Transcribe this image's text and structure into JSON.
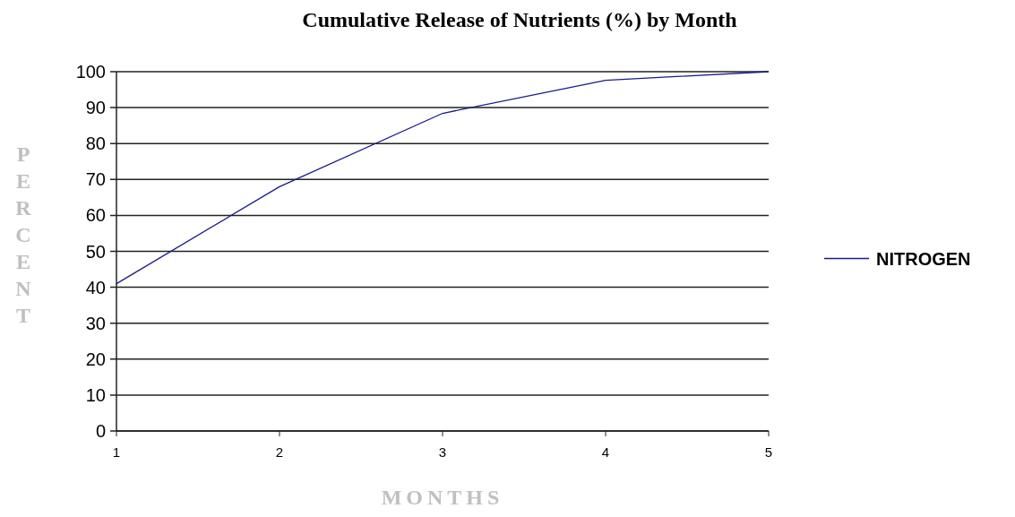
{
  "chart_data": {
    "type": "line",
    "title": "Cumulative Release of Nutrients (%) by Month",
    "xlabel": "MONTHS",
    "ylabel": "PERCENT",
    "x": [
      1,
      2,
      3,
      4,
      5
    ],
    "xlim": [
      1,
      5
    ],
    "xticks": [
      1,
      2,
      3,
      4,
      5
    ],
    "ylim": [
      0,
      100
    ],
    "yticks": [
      0,
      10,
      20,
      30,
      40,
      50,
      60,
      70,
      80,
      90,
      100
    ],
    "series": [
      {
        "name": "NITROGEN",
        "color": "#1a1a8c",
        "values": [
          41,
          68,
          88.4,
          97.6,
          100
        ]
      }
    ],
    "grid": "y",
    "legend": "right",
    "marker": "none",
    "line_style": "solid"
  }
}
